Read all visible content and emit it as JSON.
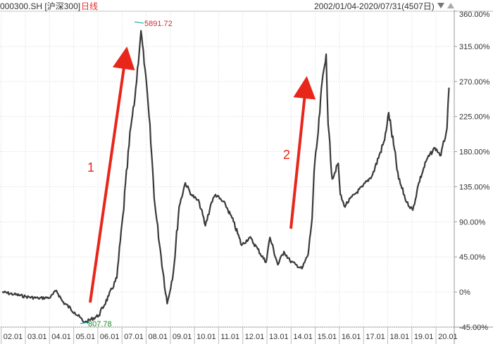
{
  "header": {
    "symbol": "000300.SH [沪深300]",
    "period": "日线",
    "date_range": "2002/01/04-2020/07/31(4507日)"
  },
  "annotations": {
    "max_label": "5891.72",
    "min_label": "807.78",
    "arrow1_label": "1",
    "arrow2_label": "2"
  },
  "colors": {
    "line": "#3a3a3a",
    "arrow": "#e8261a",
    "max_text": "#d03030",
    "min_text": "#1a8f2a",
    "grid": "#d8d8d8",
    "axis_text": "#333333"
  },
  "chart_data": {
    "type": "line",
    "title": "",
    "series": [
      {
        "name": "",
        "x": [
          "2002-01",
          "2002-07",
          "2003-01",
          "2003-07",
          "2004-01",
          "2004-04",
          "2004-07",
          "2005-01",
          "2005-06",
          "2005-07",
          "2006-01",
          "2006-06",
          "2006-10",
          "2007-01",
          "2007-05",
          "2007-07",
          "2007-10",
          "2007-12",
          "2008-02",
          "2008-05",
          "2008-08",
          "2008-11",
          "2009-02",
          "2009-05",
          "2009-08",
          "2009-11",
          "2010-03",
          "2010-06",
          "2010-09",
          "2010-11",
          "2011-04",
          "2011-08",
          "2011-12",
          "2012-04",
          "2012-08",
          "2012-12",
          "2013-02",
          "2013-06",
          "2013-09",
          "2013-12",
          "2014-03",
          "2014-06",
          "2014-09",
          "2014-11",
          "2014-12",
          "2015-02",
          "2015-04",
          "2015-06",
          "2015-07",
          "2015-09",
          "2015-12",
          "2016-01",
          "2016-03",
          "2016-08",
          "2016-12",
          "2017-05",
          "2017-11",
          "2018-01",
          "2018-06",
          "2018-10",
          "2019-01",
          "2019-04",
          "2019-08",
          "2019-12",
          "2020-03",
          "2020-06",
          "2020-07"
        ],
        "y": [
          0,
          -3,
          -6,
          -8,
          -7,
          2,
          -12,
          -26,
          -39,
          -38,
          -30,
          -5,
          18,
          98,
          212,
          248,
          335,
          286,
          225,
          110,
          45,
          -15,
          25,
          110,
          140,
          125,
          115,
          85,
          115,
          125,
          112,
          90,
          60,
          70,
          55,
          38,
          70,
          35,
          52,
          40,
          35,
          30,
          48,
          95,
          155,
          205,
          270,
          305,
          215,
          145,
          165,
          125,
          110,
          125,
          135,
          150,
          195,
          230,
          145,
          115,
          105,
          140,
          170,
          185,
          175,
          210,
          262
        ]
      }
    ],
    "y_ticks": [
      "360.00%",
      "315.00%",
      "270.00%",
      "225.00%",
      "180.00%",
      "135.00%",
      "90.00%",
      "45.00%",
      "0%",
      "-45.00%"
    ],
    "x_ticks": [
      "02.01",
      "03.01",
      "04.01",
      "05.01",
      "06.01",
      "07.01",
      "08.01",
      "09.01",
      "10.01",
      "11.01",
      "12.01",
      "13.01",
      "14.01",
      "15.01",
      "16.01",
      "17.01",
      "18.01",
      "19.01",
      "20.01"
    ],
    "ylim": [
      -45,
      360
    ],
    "xlim": [
      "2002-01-04",
      "2020-07-31"
    ],
    "grid": true
  }
}
